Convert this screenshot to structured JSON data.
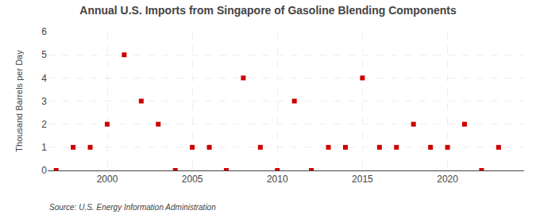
{
  "chart_data": {
    "type": "scatter",
    "title": "Annual U.S. Imports from Singapore of Gasoline Blending Components",
    "y_label": "Thousand Barrels per Day",
    "annotations": [
      "Source: U.S. Energy Information Administration"
    ],
    "x": [
      1997,
      1998,
      1999,
      2000,
      2001,
      2002,
      2003,
      2004,
      2005,
      2006,
      2007,
      2008,
      2009,
      2010,
      2011,
      2012,
      2013,
      2014,
      2015,
      2016,
      2017,
      2018,
      2019,
      2020,
      2021,
      2022,
      2023
    ],
    "values": [
      0,
      1,
      1,
      2,
      5,
      3,
      2,
      0,
      1,
      1,
      0,
      4,
      1,
      0,
      3,
      0,
      1,
      1,
      4,
      1,
      1,
      2,
      1,
      1,
      2,
      0,
      1
    ],
    "color": "#cc0000",
    "marker": "square",
    "xlim": [
      1996.5,
      2024.5
    ],
    "xticks": [
      2000,
      2005,
      2010,
      2015,
      2020
    ],
    "ylim": [
      0,
      6
    ],
    "yticks": [
      0,
      1,
      2,
      3,
      4,
      5,
      6
    ],
    "grid": true
  }
}
